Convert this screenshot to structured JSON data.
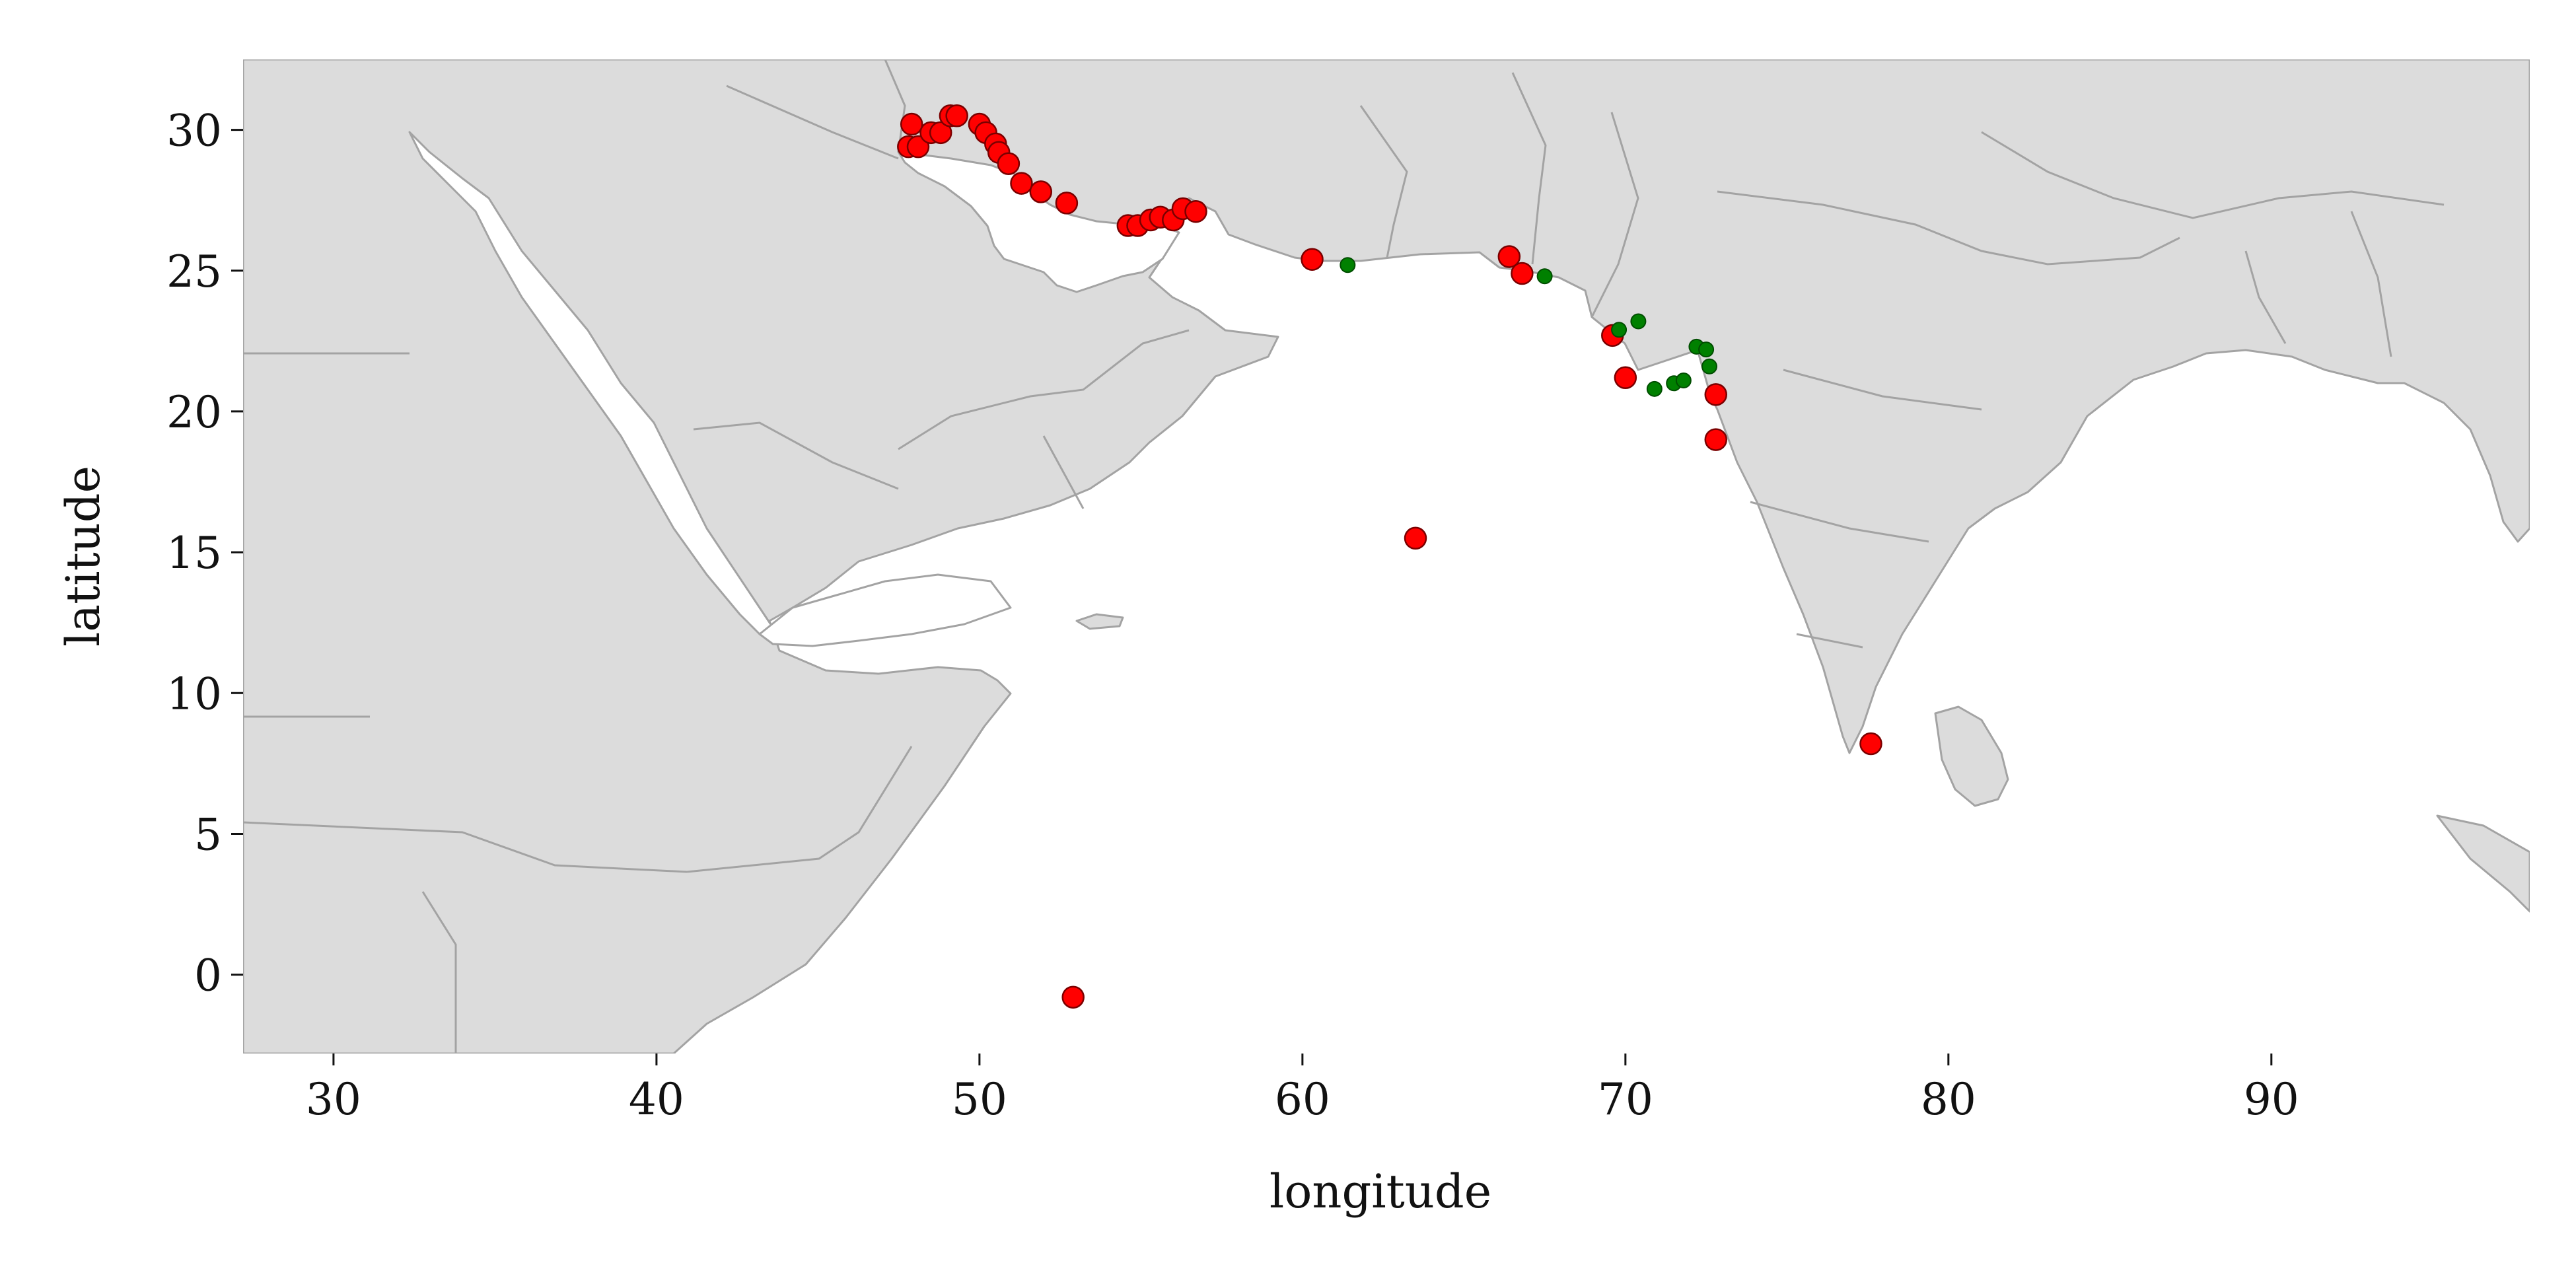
{
  "chart_data": {
    "type": "scatter",
    "xlabel": "longitude",
    "ylabel": "latitude",
    "xlim": [
      27.2,
      98.0
    ],
    "ylim": [
      -2.8,
      32.5
    ],
    "x_ticks": [
      "30",
      "40",
      "50",
      "60",
      "70",
      "80",
      "90"
    ],
    "y_ticks": [
      "0",
      "5",
      "10",
      "15",
      "20",
      "25",
      "30"
    ],
    "grid": false,
    "background": "land-map",
    "colors": {
      "land": "#dcdcdc",
      "borders": "#a3a3a3",
      "sea": "#ffffff"
    },
    "series": [
      {
        "color": "#ff0000",
        "marker": "large-circle",
        "points": [
          [
            47.8,
            29.4
          ],
          [
            47.9,
            30.2
          ],
          [
            48.1,
            29.4
          ],
          [
            48.5,
            29.9
          ],
          [
            48.8,
            29.9
          ],
          [
            49.1,
            30.5
          ],
          [
            49.3,
            30.5
          ],
          [
            50.0,
            30.2
          ],
          [
            50.2,
            29.9
          ],
          [
            50.5,
            29.5
          ],
          [
            50.6,
            29.2
          ],
          [
            50.9,
            28.8
          ],
          [
            51.3,
            28.1
          ],
          [
            51.9,
            27.8
          ],
          [
            52.7,
            27.4
          ],
          [
            54.6,
            26.6
          ],
          [
            54.9,
            26.6
          ],
          [
            55.3,
            26.8
          ],
          [
            55.6,
            26.9
          ],
          [
            56.0,
            26.8
          ],
          [
            56.3,
            27.2
          ],
          [
            56.7,
            27.1
          ],
          [
            60.3,
            25.4
          ],
          [
            63.5,
            15.5
          ],
          [
            66.4,
            25.5
          ],
          [
            66.8,
            24.9
          ],
          [
            69.6,
            22.7
          ],
          [
            70.0,
            21.2
          ],
          [
            72.8,
            20.6
          ],
          [
            72.8,
            19.0
          ],
          [
            77.6,
            8.2
          ],
          [
            52.9,
            -0.8
          ]
        ]
      },
      {
        "color": "#008000",
        "marker": "small-circle",
        "points": [
          [
            61.4,
            25.2
          ],
          [
            67.5,
            24.8
          ],
          [
            69.8,
            22.9
          ],
          [
            70.4,
            23.2
          ],
          [
            70.9,
            20.8
          ],
          [
            71.5,
            21.0
          ],
          [
            71.8,
            21.1
          ],
          [
            72.2,
            22.3
          ],
          [
            72.5,
            22.2
          ],
          [
            72.6,
            21.6
          ]
        ]
      }
    ]
  }
}
